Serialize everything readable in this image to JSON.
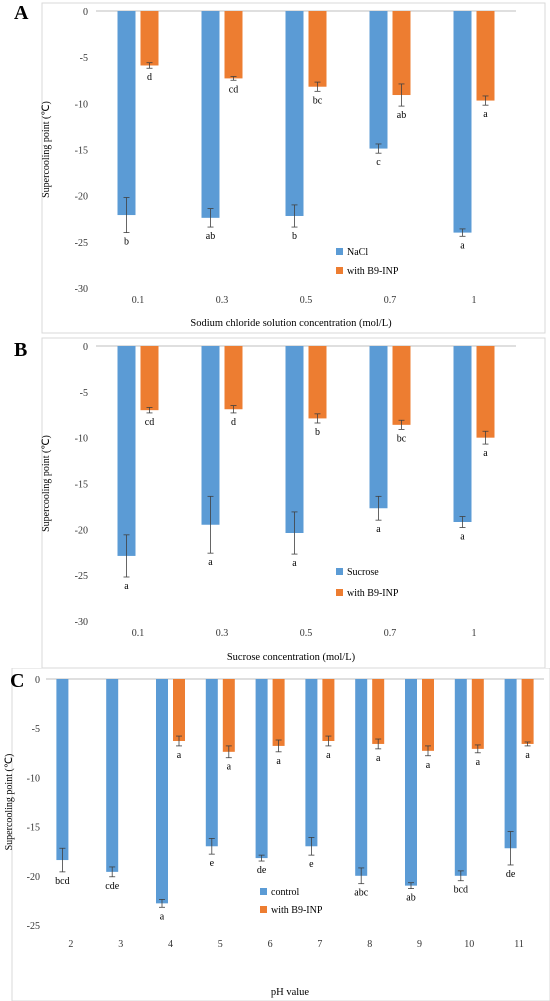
{
  "colors": {
    "series1": "#5b9bd5",
    "series2": "#ed7d31"
  },
  "chart_data": [
    {
      "panel": "A",
      "type": "bar",
      "categories": [
        "0.1",
        "0.3",
        "0.5",
        "0.7",
        "1"
      ],
      "series": [
        {
          "name": "NaCl",
          "values": [
            -22.1,
            -22.4,
            -22.2,
            -14.9,
            -24.0
          ],
          "errors": [
            1.9,
            1.0,
            1.2,
            0.5,
            0.4
          ],
          "letters": [
            "b",
            "ab",
            "b",
            "c",
            "a"
          ]
        },
        {
          "name": "with B9-INP",
          "values": [
            -5.9,
            -7.3,
            -8.2,
            -9.1,
            -9.7
          ],
          "errors": [
            0.3,
            0.2,
            0.5,
            1.2,
            0.5
          ],
          "letters": [
            "d",
            "cd",
            "bc",
            "ab",
            "a"
          ]
        }
      ],
      "ylim": [
        -30,
        0
      ],
      "yticks": [
        0,
        -5,
        -10,
        -15,
        -20,
        -25,
        -30
      ],
      "xlabel": "Sodium chloride solution concentration (mol/L)",
      "ylabel": "Supercooling point (℃)",
      "legend": "bottom-right"
    },
    {
      "panel": "B",
      "type": "bar",
      "categories": [
        "0.1",
        "0.3",
        "0.5",
        "0.7",
        "1"
      ],
      "series": [
        {
          "name": "Sucrose",
          "values": [
            -22.9,
            -19.5,
            -20.4,
            -17.7,
            -19.2
          ],
          "errors": [
            2.3,
            3.1,
            2.3,
            1.3,
            0.6
          ],
          "letters": [
            "a",
            "a",
            "a",
            "a",
            "a"
          ]
        },
        {
          "name": "with B9-INP",
          "values": [
            -7.0,
            -6.9,
            -7.9,
            -8.6,
            -10.0
          ],
          "errors": [
            0.3,
            0.4,
            0.5,
            0.5,
            0.7
          ],
          "letters": [
            "cd",
            "d",
            "b",
            "bc",
            "a"
          ]
        }
      ],
      "ylim": [
        -30,
        0
      ],
      "yticks": [
        0,
        -5,
        -10,
        -15,
        -20,
        -25,
        -30
      ],
      "xlabel": "Sucrose concentration (mol/L)",
      "ylabel": "Supercooling point (℃)",
      "legend": "bottom-right"
    },
    {
      "panel": "C",
      "type": "bar",
      "categories": [
        "2",
        "3",
        "4",
        "5",
        "6",
        "7",
        "8",
        "9",
        "10",
        "11"
      ],
      "series": [
        {
          "name": "control",
          "values": [
            -18.4,
            -19.6,
            -22.8,
            -17.0,
            -18.2,
            -17.0,
            -20.0,
            -21.0,
            -20.0,
            -17.2
          ],
          "errors": [
            1.2,
            0.5,
            0.4,
            0.8,
            0.3,
            0.9,
            0.8,
            0.3,
            0.5,
            1.7
          ],
          "letters": [
            "bcd",
            "cde",
            "a",
            "e",
            "de",
            "e",
            "abc",
            "ab",
            "bcd",
            "de"
          ]
        },
        {
          "name": "with B9-INP",
          "values": [
            -0.0,
            -0.0,
            -6.3,
            -7.4,
            -6.8,
            -6.3,
            -6.6,
            -7.3,
            -7.1,
            -6.6
          ],
          "errors": [
            0,
            0,
            0.5,
            0.6,
            0.6,
            0.5,
            0.5,
            0.5,
            0.4,
            0.2
          ],
          "letters": [
            "",
            "",
            "a",
            "a",
            "a",
            "a",
            "a",
            "a",
            "a",
            "a"
          ]
        }
      ],
      "ylim": [
        -25,
        0
      ],
      "yticks": [
        0,
        -5,
        -10,
        -15,
        -20,
        -25
      ],
      "xlabel": "pH  value",
      "ylabel": "Supercooling point (℃)",
      "legend": "bottom-center"
    }
  ]
}
